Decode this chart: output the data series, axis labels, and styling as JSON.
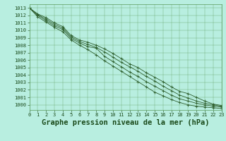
{
  "title": "Graphe pression niveau de la mer (hPa)",
  "xlim": [
    0,
    23
  ],
  "ylim": [
    999.3,
    1013.5
  ],
  "yticks": [
    1000,
    1001,
    1002,
    1003,
    1004,
    1005,
    1006,
    1007,
    1008,
    1009,
    1010,
    1011,
    1012,
    1013
  ],
  "xticks": [
    0,
    1,
    2,
    3,
    4,
    5,
    6,
    7,
    8,
    9,
    10,
    11,
    12,
    13,
    14,
    15,
    16,
    17,
    18,
    19,
    20,
    21,
    22,
    23
  ],
  "bg_color": "#b8eee0",
  "grid_color": "#5a9a5a",
  "line_color": "#2d5e2d",
  "marker_color": "#2d5e2d",
  "lines": [
    [
      1013.0,
      1012.2,
      1011.7,
      1011.0,
      1010.5,
      1009.3,
      1008.7,
      1008.4,
      1008.0,
      1007.5,
      1006.9,
      1006.2,
      1005.5,
      1005.0,
      1004.3,
      1003.7,
      1003.1,
      1002.4,
      1001.8,
      1001.5,
      1001.0,
      1000.5,
      1000.1,
      999.9
    ],
    [
      1013.0,
      1012.1,
      1011.5,
      1010.8,
      1010.3,
      1009.1,
      1008.5,
      1008.1,
      1007.7,
      1007.1,
      1006.4,
      1005.7,
      1005.1,
      1004.5,
      1003.8,
      1003.2,
      1002.5,
      1001.9,
      1001.3,
      1000.9,
      1000.5,
      1000.2,
      1000.0,
      999.8
    ],
    [
      1013.0,
      1012.0,
      1011.3,
      1010.6,
      1010.1,
      1008.9,
      1008.3,
      1007.8,
      1007.6,
      1006.5,
      1005.8,
      1005.1,
      1004.4,
      1003.8,
      1003.1,
      1002.5,
      1001.9,
      1001.3,
      1000.8,
      1000.5,
      1000.2,
      1000.0,
      999.8,
      999.7
    ],
    [
      1013.0,
      1011.8,
      1011.1,
      1010.4,
      1009.8,
      1008.7,
      1008.0,
      1007.4,
      1006.7,
      1005.9,
      1005.2,
      1004.5,
      1003.8,
      1003.1,
      1002.4,
      1001.7,
      1001.2,
      1000.7,
      1000.3,
      1000.0,
      999.8,
      999.7,
      999.6,
      999.5
    ]
  ],
  "title_fontsize": 7.5,
  "tick_fontsize": 5.0,
  "title_color": "#1a4a1a",
  "tick_color": "#1a4a1a",
  "label_color": "#1a4a1a"
}
